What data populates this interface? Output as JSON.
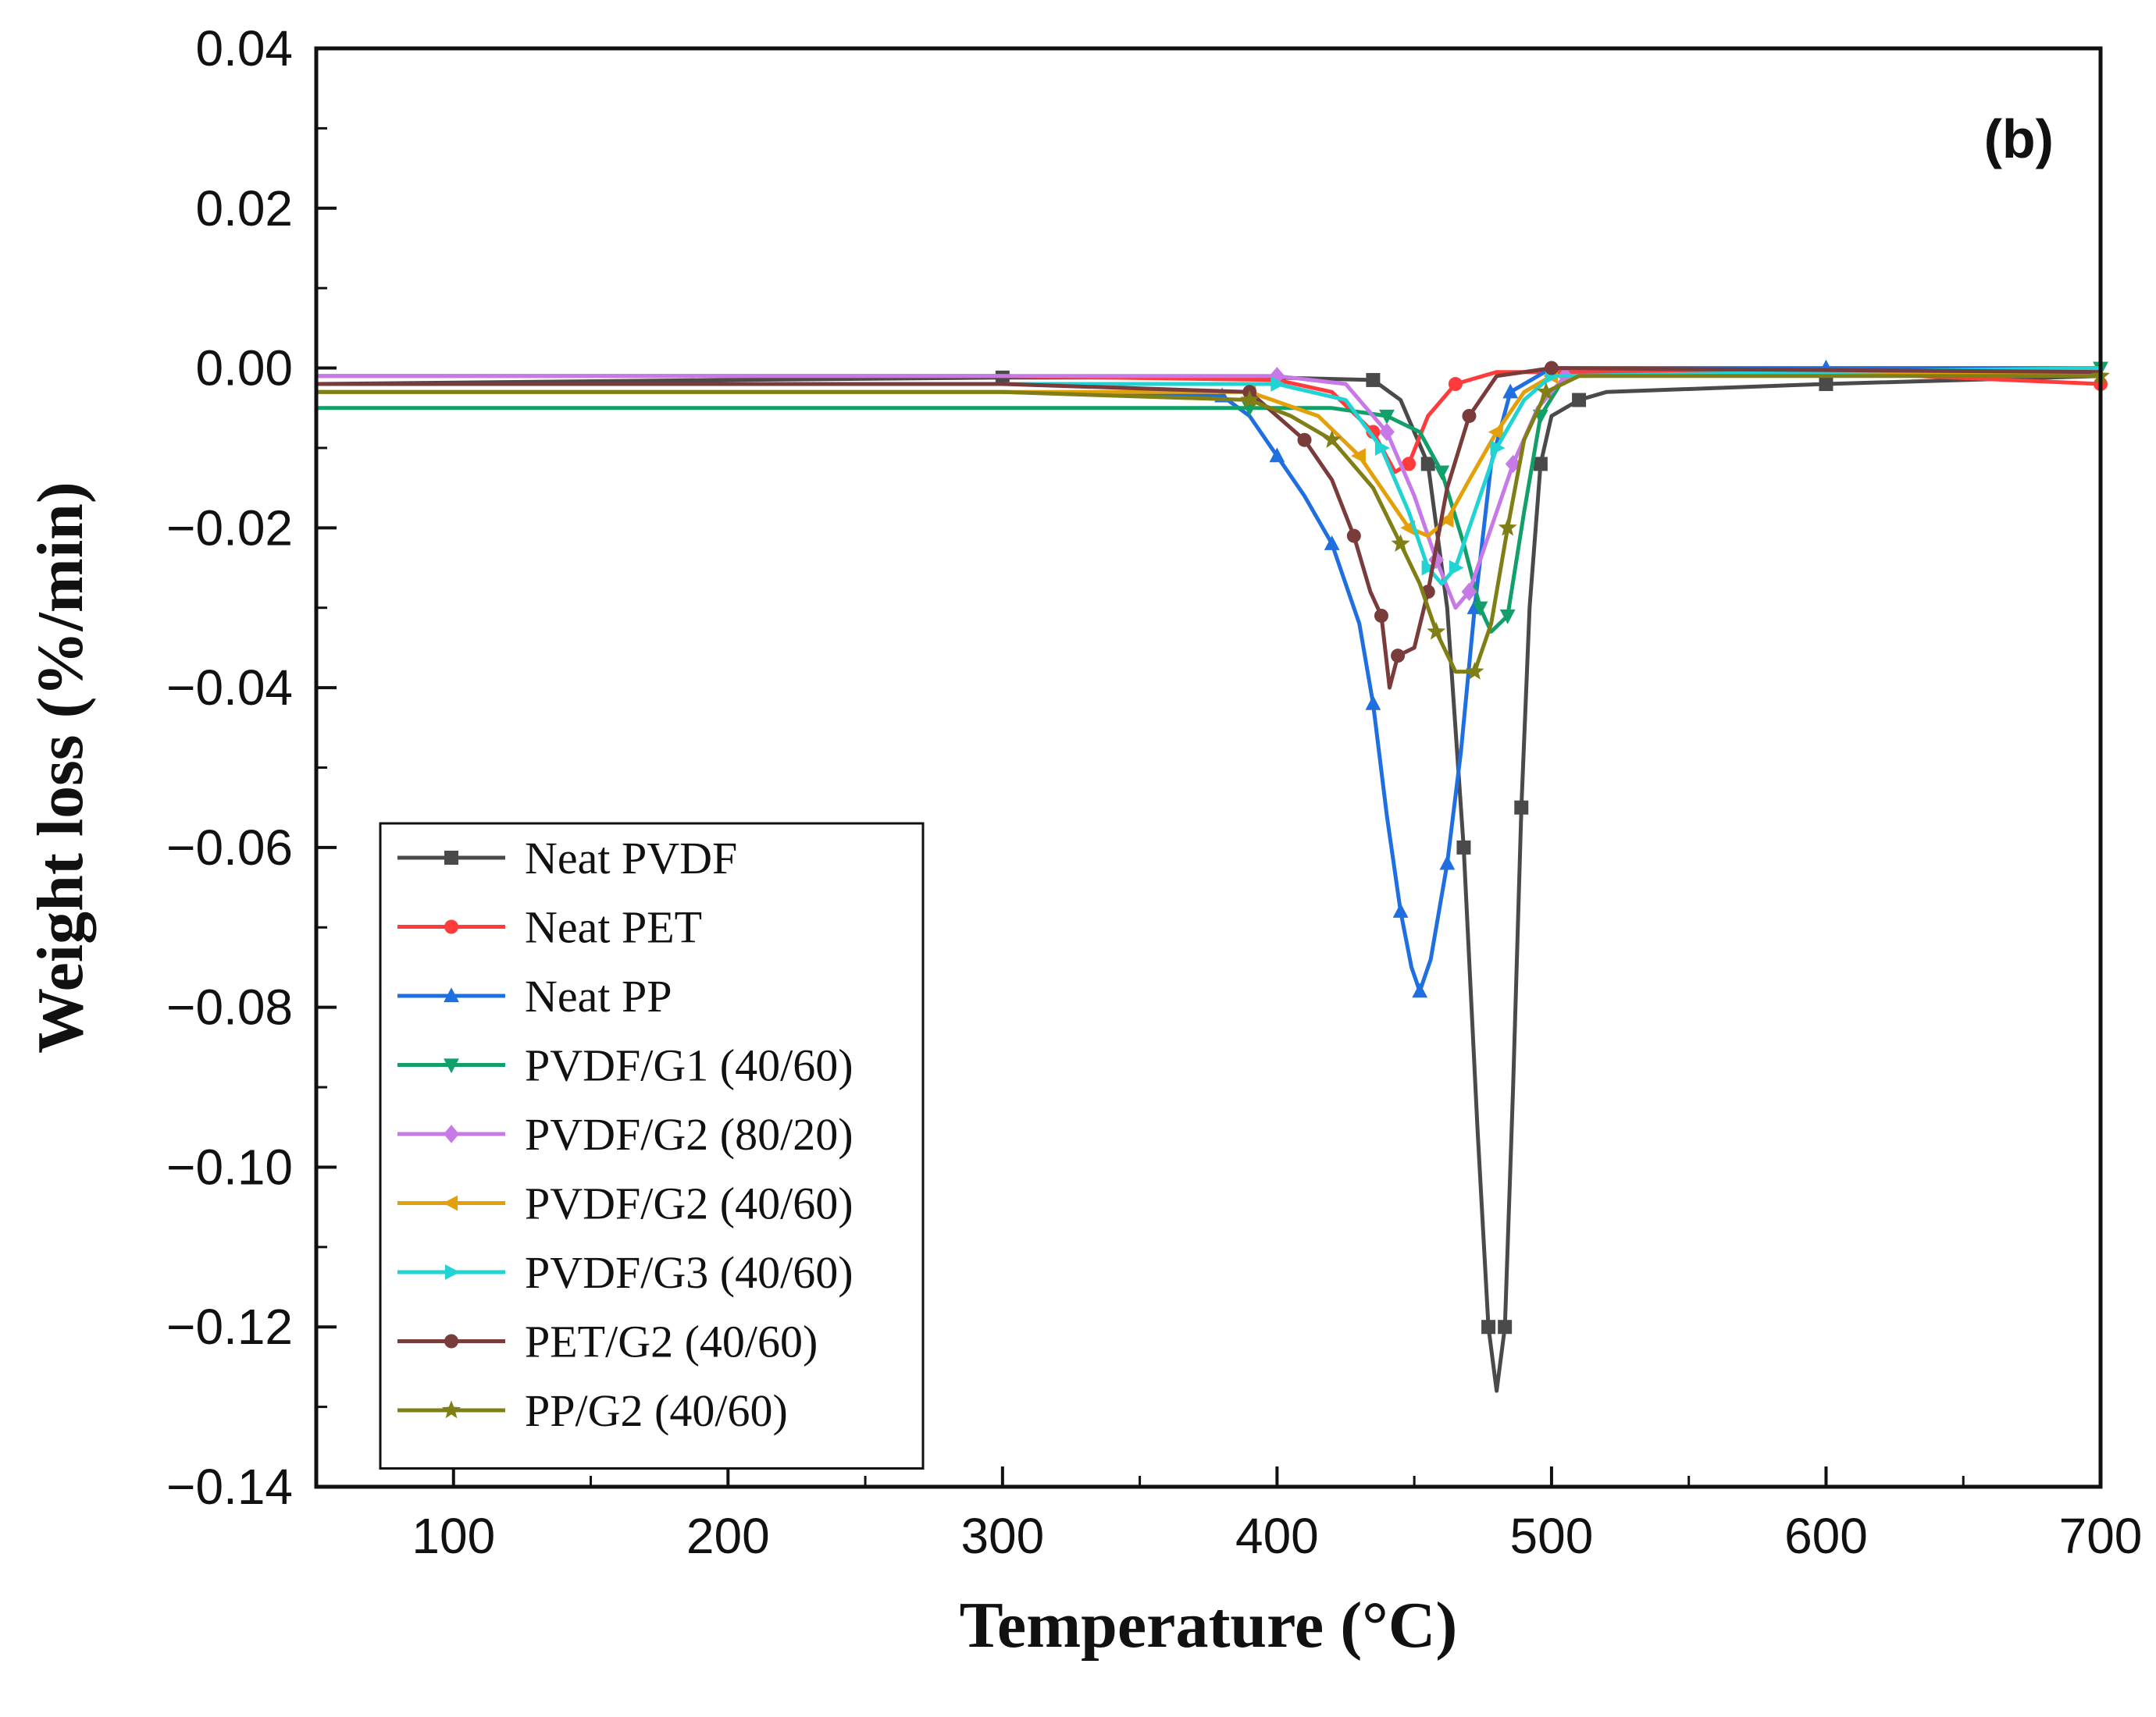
{
  "chart_data": {
    "type": "line",
    "panel_label": "(b)",
    "xlabel": "Temperature (°C)",
    "ylabel": "Weight loss (%/min)",
    "xlim": [
      50,
      700
    ],
    "ylim": [
      -0.14,
      0.04
    ],
    "x_ticks": [
      100,
      200,
      300,
      400,
      500,
      600,
      700
    ],
    "x_tick_labels": [
      "100",
      "200",
      "300",
      "400",
      "500",
      "600",
      "700"
    ],
    "y_ticks": [
      0.04,
      0.02,
      0.0,
      -0.02,
      -0.04,
      -0.06,
      -0.08,
      -0.1,
      -0.12,
      -0.14
    ],
    "y_tick_labels": [
      "0.04",
      "0.02",
      "0.00",
      "−0.02",
      "−0.04",
      "−0.06",
      "−0.08",
      "−0.10",
      "−0.12",
      "−0.14"
    ],
    "legend_position": "lower-left",
    "series": [
      {
        "name": "Neat PVDF",
        "color": "#4a4a4a",
        "marker": "square",
        "points": [
          [
            50,
            -0.002
          ],
          [
            200,
            -0.0015
          ],
          [
            300,
            -0.0012
          ],
          [
            400,
            -0.0012
          ],
          [
            435,
            -0.0015
          ],
          [
            445,
            -0.004
          ],
          [
            455,
            -0.012
          ],
          [
            462,
            -0.03
          ],
          [
            468,
            -0.06
          ],
          [
            473,
            -0.095
          ],
          [
            477,
            -0.12
          ],
          [
            480,
            -0.128
          ],
          [
            483,
            -0.12
          ],
          [
            486,
            -0.09
          ],
          [
            489,
            -0.055
          ],
          [
            492,
            -0.03
          ],
          [
            496,
            -0.012
          ],
          [
            500,
            -0.006
          ],
          [
            510,
            -0.004
          ],
          [
            520,
            -0.003
          ],
          [
            600,
            -0.002
          ],
          [
            700,
            -0.001
          ]
        ]
      },
      {
        "name": "Neat PET",
        "color": "#ff3b3b",
        "marker": "circle",
        "points": [
          [
            50,
            -0.001
          ],
          [
            300,
            -0.001
          ],
          [
            400,
            -0.0015
          ],
          [
            420,
            -0.003
          ],
          [
            435,
            -0.008
          ],
          [
            443,
            -0.013
          ],
          [
            448,
            -0.012
          ],
          [
            455,
            -0.006
          ],
          [
            465,
            -0.002
          ],
          [
            480,
            -0.0005
          ],
          [
            500,
            -0.0005
          ],
          [
            600,
            -0.0005
          ],
          [
            700,
            -0.002
          ]
        ]
      },
      {
        "name": "Neat PP",
        "color": "#1f6fe0",
        "marker": "triangle-up",
        "points": [
          [
            50,
            -0.003
          ],
          [
            300,
            -0.003
          ],
          [
            380,
            -0.0035
          ],
          [
            390,
            -0.006
          ],
          [
            400,
            -0.011
          ],
          [
            410,
            -0.016
          ],
          [
            420,
            -0.022
          ],
          [
            430,
            -0.032
          ],
          [
            435,
            -0.042
          ],
          [
            440,
            -0.056
          ],
          [
            445,
            -0.068
          ],
          [
            449,
            -0.075
          ],
          [
            452,
            -0.078
          ],
          [
            456,
            -0.074
          ],
          [
            462,
            -0.062
          ],
          [
            467,
            -0.048
          ],
          [
            472,
            -0.03
          ],
          [
            478,
            -0.012
          ],
          [
            485,
            -0.003
          ],
          [
            500,
            0.0
          ],
          [
            600,
            0.0
          ],
          [
            700,
            0.0
          ]
        ]
      },
      {
        "name": "PVDF/G1 (40/60)",
        "color": "#12a06a",
        "marker": "triangle-down",
        "points": [
          [
            50,
            -0.005
          ],
          [
            300,
            -0.005
          ],
          [
            390,
            -0.005
          ],
          [
            420,
            -0.005
          ],
          [
            440,
            -0.006
          ],
          [
            452,
            -0.008
          ],
          [
            460,
            -0.013
          ],
          [
            468,
            -0.022
          ],
          [
            474,
            -0.03
          ],
          [
            478,
            -0.033
          ],
          [
            484,
            -0.031
          ],
          [
            490,
            -0.018
          ],
          [
            496,
            -0.006
          ],
          [
            505,
            -0.001
          ],
          [
            700,
            0.0
          ]
        ]
      },
      {
        "name": "PVDF/G2 (80/20)",
        "color": "#c779e8",
        "marker": "diamond",
        "points": [
          [
            50,
            -0.001
          ],
          [
            300,
            -0.001
          ],
          [
            400,
            -0.001
          ],
          [
            425,
            -0.002
          ],
          [
            440,
            -0.008
          ],
          [
            450,
            -0.016
          ],
          [
            458,
            -0.024
          ],
          [
            465,
            -0.03
          ],
          [
            470,
            -0.028
          ],
          [
            478,
            -0.02
          ],
          [
            486,
            -0.012
          ],
          [
            495,
            -0.005
          ],
          [
            505,
            -0.001
          ],
          [
            700,
            -0.0005
          ]
        ]
      },
      {
        "name": "PVDF/G2 (40/60)",
        "color": "#e3a008",
        "marker": "triangle-left",
        "points": [
          [
            50,
            -0.003
          ],
          [
            300,
            -0.003
          ],
          [
            390,
            -0.003
          ],
          [
            415,
            -0.006
          ],
          [
            430,
            -0.011
          ],
          [
            440,
            -0.016
          ],
          [
            448,
            -0.02
          ],
          [
            455,
            -0.021
          ],
          [
            462,
            -0.019
          ],
          [
            470,
            -0.014
          ],
          [
            480,
            -0.008
          ],
          [
            490,
            -0.003
          ],
          [
            500,
            -0.001
          ],
          [
            700,
            -0.0005
          ]
        ]
      },
      {
        "name": "PVDF/G3 (40/60)",
        "color": "#22d3d3",
        "marker": "triangle-right",
        "points": [
          [
            50,
            -0.002
          ],
          [
            300,
            -0.002
          ],
          [
            400,
            -0.002
          ],
          [
            425,
            -0.004
          ],
          [
            438,
            -0.01
          ],
          [
            448,
            -0.018
          ],
          [
            455,
            -0.025
          ],
          [
            460,
            -0.027
          ],
          [
            465,
            -0.025
          ],
          [
            472,
            -0.018
          ],
          [
            480,
            -0.01
          ],
          [
            490,
            -0.004
          ],
          [
            500,
            -0.001
          ],
          [
            700,
            0.0
          ]
        ]
      },
      {
        "name": "PET/G2 (40/60)",
        "color": "#7a3b3b",
        "marker": "circle",
        "points": [
          [
            50,
            -0.002
          ],
          [
            300,
            -0.002
          ],
          [
            390,
            -0.003
          ],
          [
            400,
            -0.006
          ],
          [
            410,
            -0.009
          ],
          [
            420,
            -0.014
          ],
          [
            428,
            -0.021
          ],
          [
            434,
            -0.028
          ],
          [
            438,
            -0.031
          ],
          [
            441,
            -0.04
          ],
          [
            444,
            -0.036
          ],
          [
            450,
            -0.035
          ],
          [
            455,
            -0.028
          ],
          [
            462,
            -0.015
          ],
          [
            470,
            -0.006
          ],
          [
            480,
            -0.001
          ],
          [
            500,
            0.0
          ],
          [
            700,
            -0.0005
          ]
        ]
      },
      {
        "name": "PP/G2 (40/60)",
        "color": "#7f7f16",
        "marker": "star",
        "points": [
          [
            50,
            -0.003
          ],
          [
            300,
            -0.003
          ],
          [
            390,
            -0.004
          ],
          [
            405,
            -0.006
          ],
          [
            420,
            -0.009
          ],
          [
            435,
            -0.015
          ],
          [
            445,
            -0.022
          ],
          [
            452,
            -0.027
          ],
          [
            458,
            -0.033
          ],
          [
            465,
            -0.038
          ],
          [
            472,
            -0.038
          ],
          [
            478,
            -0.032
          ],
          [
            484,
            -0.02
          ],
          [
            490,
            -0.009
          ],
          [
            498,
            -0.003
          ],
          [
            510,
            -0.001
          ],
          [
            700,
            -0.001
          ]
        ]
      }
    ]
  }
}
